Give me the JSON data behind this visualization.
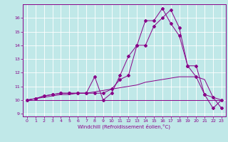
{
  "xlabel": "Windchill (Refroidissement éolien,°C)",
  "xlim": [
    -0.5,
    23.5
  ],
  "ylim": [
    8.8,
    17.0
  ],
  "yticks": [
    9,
    10,
    11,
    12,
    13,
    14,
    15,
    16
  ],
  "xticks": [
    0,
    1,
    2,
    3,
    4,
    5,
    6,
    7,
    8,
    9,
    10,
    11,
    12,
    13,
    14,
    15,
    16,
    17,
    18,
    19,
    20,
    21,
    22,
    23
  ],
  "background_color": "#c0e8e8",
  "grid_color": "#b0d8d8",
  "line_color": "#880088",
  "line1_x": [
    0,
    1,
    2,
    3,
    4,
    5,
    6,
    7,
    8,
    9,
    10,
    11,
    12,
    13,
    14,
    15,
    16,
    17,
    18,
    19,
    20,
    21,
    22,
    23
  ],
  "line1_y": [
    10.0,
    10.0,
    10.0,
    10.0,
    10.0,
    10.0,
    10.0,
    10.0,
    10.0,
    10.0,
    10.0,
    10.0,
    10.0,
    10.0,
    10.0,
    10.0,
    10.0,
    10.0,
    10.0,
    10.0,
    10.0,
    10.0,
    10.0,
    10.0
  ],
  "line2_x": [
    0,
    1,
    2,
    3,
    4,
    5,
    6,
    7,
    8,
    9,
    10,
    11,
    12,
    13,
    14,
    15,
    16,
    17,
    18,
    19,
    20,
    21,
    22,
    23
  ],
  "line2_y": [
    10.0,
    10.1,
    10.2,
    10.3,
    10.4,
    10.4,
    10.5,
    10.5,
    10.6,
    10.7,
    10.8,
    10.9,
    11.0,
    11.1,
    11.3,
    11.4,
    11.5,
    11.6,
    11.7,
    11.7,
    11.7,
    11.5,
    10.2,
    10.0
  ],
  "line3_x": [
    0,
    1,
    2,
    3,
    4,
    5,
    6,
    7,
    8,
    9,
    10,
    11,
    12,
    13,
    14,
    15,
    16,
    17,
    18,
    19,
    20,
    21,
    22,
    23
  ],
  "line3_y": [
    10.0,
    10.1,
    10.3,
    10.4,
    10.5,
    10.5,
    10.5,
    10.5,
    10.5,
    10.5,
    10.8,
    11.5,
    11.8,
    14.0,
    14.0,
    15.4,
    16.0,
    16.6,
    15.3,
    12.5,
    12.5,
    10.4,
    10.2,
    9.4
  ],
  "line4_x": [
    0,
    1,
    2,
    3,
    4,
    5,
    6,
    7,
    8,
    9,
    10,
    11,
    12,
    13,
    14,
    15,
    16,
    17,
    18,
    19,
    20,
    21,
    22,
    23
  ],
  "line4_y": [
    10.0,
    10.1,
    10.3,
    10.4,
    10.5,
    10.5,
    10.5,
    10.5,
    11.7,
    10.0,
    10.5,
    11.8,
    13.2,
    14.0,
    15.8,
    15.8,
    16.7,
    15.6,
    14.7,
    12.5,
    11.7,
    10.4,
    9.4,
    10.0
  ]
}
